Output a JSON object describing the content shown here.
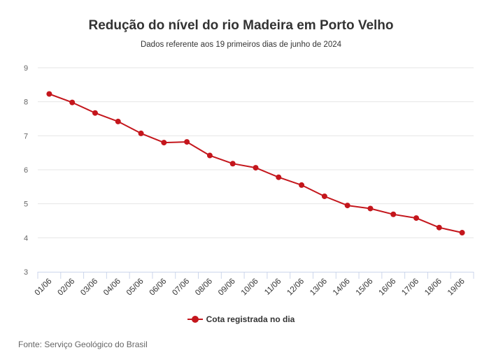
{
  "title": "Redução do nível do rio Madeira em Porto Velho",
  "subtitle": "Dados referente aos 19 primeiros dias de junho de 2024",
  "source": "Fonte: Serviço Geológico do Brasil",
  "colors": {
    "series": "#c4161c",
    "grid": "#e6e6e6",
    "axis": "#ccd6eb"
  },
  "chart_data": {
    "type": "line",
    "title": "Redução do nível do rio Madeira em Porto Velho",
    "subtitle": "Dados referente aos 19 primeiros dias de junho de 2024",
    "xlabel": "",
    "ylabel": "",
    "categories": [
      "01/06",
      "02/06",
      "03/06",
      "04/06",
      "05/06",
      "06/06",
      "07/06",
      "08/06",
      "09/06",
      "10/06",
      "11/06",
      "12/06",
      "13/06",
      "14/06",
      "15/06",
      "16/06",
      "17/06",
      "18/06",
      "19/06"
    ],
    "series": [
      {
        "name": "Cota registrada no dia",
        "values": [
          8.23,
          7.98,
          7.67,
          7.42,
          7.07,
          6.8,
          6.82,
          6.42,
          6.18,
          6.06,
          5.78,
          5.55,
          5.22,
          4.95,
          4.86,
          4.69,
          4.58,
          4.3,
          4.15
        ]
      }
    ],
    "ylim": [
      3,
      9
    ],
    "yticks": [
      3,
      4,
      5,
      6,
      7,
      8,
      9
    ],
    "grid": true,
    "legend": "bottom-center"
  }
}
